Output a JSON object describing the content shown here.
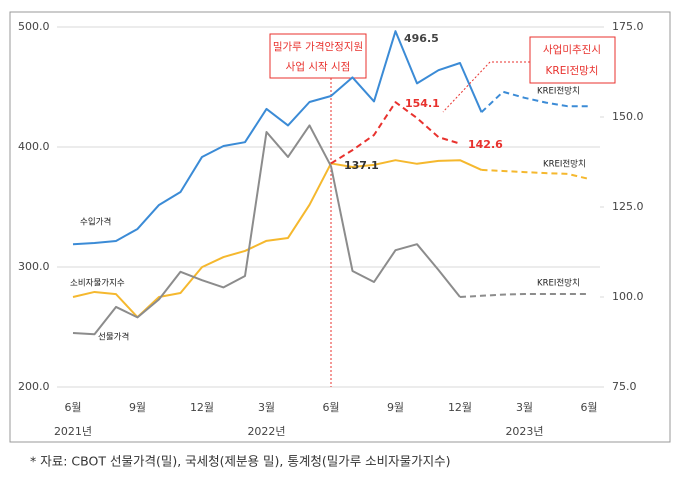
{
  "chart_data": {
    "type": "line",
    "categories": [
      "6월",
      null,
      null,
      "9월",
      null,
      null,
      "12월",
      null,
      null,
      "3월",
      null,
      null,
      "6월",
      null,
      null,
      "9월",
      null,
      null,
      "12월",
      null,
      null,
      "3월",
      null,
      null,
      "6월"
    ],
    "years": [
      "2021년",
      null,
      null,
      null,
      null,
      null,
      null,
      null,
      null,
      "2022년",
      null,
      null,
      null,
      null,
      null,
      null,
      null,
      null,
      null,
      null,
      null,
      "2023년",
      null,
      null,
      null
    ],
    "ylim": [
      200,
      500
    ],
    "yticks": [
      {
        "value": 200,
        "label": "200.0"
      },
      {
        "value": 300,
        "label": "300.0"
      },
      {
        "value": 400,
        "label": "400.0"
      },
      {
        "value": 500,
        "label": "500.0"
      }
    ],
    "y2lim": [
      75,
      175
    ],
    "y2ticks": [
      {
        "value": 75,
        "label": "75.0"
      },
      {
        "value": 100,
        "label": "100.0"
      },
      {
        "value": 125,
        "label": "125.0"
      },
      {
        "value": 150,
        "label": "150.0"
      },
      {
        "value": 175,
        "label": "175.0"
      }
    ],
    "grid": true,
    "series": [
      {
        "name": "수입가격",
        "color": "#3b8bd6",
        "axis": "y",
        "values": [
          319,
          320,
          321.7,
          331.7,
          351.7,
          362.5,
          391.7,
          400.8,
          404,
          431.7,
          418,
          437.5,
          442.5,
          458,
          438,
          496.5,
          453,
          464,
          470,
          429,
          null,
          null,
          null,
          null,
          null
        ],
        "forecast": [
          null,
          null,
          null,
          null,
          null,
          null,
          null,
          null,
          null,
          null,
          null,
          null,
          null,
          null,
          null,
          null,
          null,
          null,
          null,
          429,
          446,
          441,
          437,
          434,
          434
        ],
        "forecast_label": "KREI전망치"
      },
      {
        "name": "소비자물가지수",
        "color": "#f5b82e",
        "axis": "y2",
        "values": [
          100,
          101.4,
          100.8,
          94.4,
          100,
          101.1,
          108.3,
          111.1,
          112.8,
          115.6,
          116.4,
          125.6,
          137.1,
          136.1,
          136.7,
          138,
          137,
          137.8,
          138,
          135.3,
          null,
          null,
          null,
          null,
          null
        ],
        "forecast": [
          null,
          null,
          null,
          null,
          null,
          null,
          null,
          null,
          null,
          null,
          null,
          null,
          null,
          null,
          null,
          null,
          null,
          null,
          null,
          135.3,
          135,
          134.7,
          134.4,
          134.2,
          132.8
        ],
        "forecast_label": "KREI전망치"
      },
      {
        "name": "선물가격",
        "color": "#8c8c8c",
        "axis": "y",
        "values": [
          245,
          244,
          266.7,
          258,
          273,
          296,
          289,
          283,
          292.5,
          412.5,
          391.7,
          418,
          384,
          296.7,
          287.5,
          314,
          319,
          297.5,
          275,
          null,
          null,
          null,
          null,
          null,
          null
        ],
        "forecast": [
          null,
          null,
          null,
          null,
          null,
          null,
          null,
          null,
          null,
          null,
          null,
          null,
          null,
          null,
          null,
          null,
          null,
          null,
          275,
          276,
          277,
          277.5,
          277.5,
          277.5,
          277.5
        ],
        "forecast_label": "KREI전망치"
      },
      {
        "name_lines": [
          "사업미추진시",
          "KREI전망치"
        ],
        "color": "#e8322e",
        "axis": "y2",
        "dashed": true,
        "values": [
          null,
          null,
          null,
          null,
          null,
          null,
          null,
          null,
          null,
          null,
          null,
          null,
          137.1,
          140.8,
          145,
          154.1,
          149.7,
          144.4,
          142.6,
          null,
          null,
          null,
          null,
          null,
          null
        ]
      }
    ],
    "event": {
      "lines": [
        "밀가루 가격안정지원",
        "사업 시작 시점"
      ],
      "category": 12
    },
    "source": "* 자료: CBOT 선물가격(밀), 국세청(제분용 밀), 통계청(밀가루 소비자물가지수)"
  }
}
